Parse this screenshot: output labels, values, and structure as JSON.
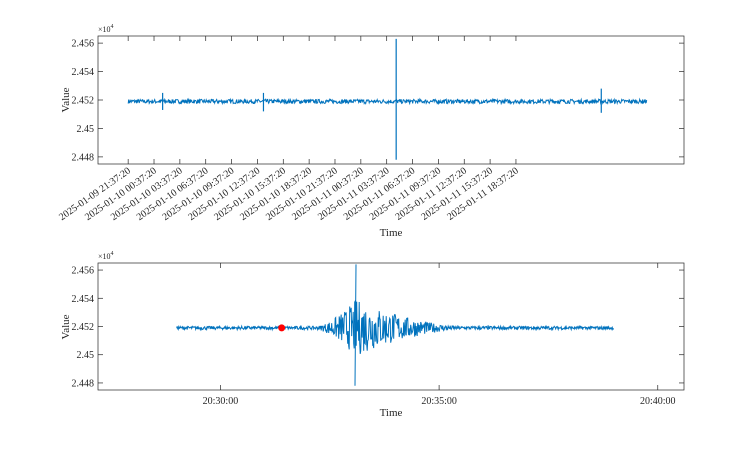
{
  "chart_data": [
    {
      "type": "line",
      "xlabel": "Time",
      "ylabel": "Value",
      "y_exponent_label": "×10",
      "y_exponent_power": "4",
      "yticks": [
        24480,
        24500,
        24520,
        24540,
        24560
      ],
      "ytick_labels": [
        "2.448",
        "2.45",
        "2.452",
        "2.454",
        "2.456"
      ],
      "ylim": [
        24475,
        24565
      ],
      "x_unit": "hours since 2025-01-09 21:37:20",
      "xlim": [
        -3.5,
        64.5
      ],
      "xticks": [
        0,
        3,
        6,
        9,
        12,
        15,
        18,
        21,
        24,
        27,
        30,
        33,
        36,
        39,
        42,
        45
      ],
      "xtick_labels": [
        "2025-01-09 21:37:20",
        "2025-01-10 00:37:20",
        "2025-01-10 03:37:20",
        "2025-01-10 06:37:20",
        "2025-01-10 09:37:20",
        "2025-01-10 12:37:20",
        "2025-01-10 15:37:20",
        "2025-01-10 18:37:20",
        "2025-01-10 21:37:20",
        "2025-01-11 00:37:20",
        "2025-01-11 03:37:20",
        "2025-01-11 06:37:20",
        "2025-01-11 09:37:20",
        "2025-01-11 12:37:20",
        "2025-01-11 15:37:20",
        "2025-01-11 18:37:20"
      ],
      "grid": false,
      "series_color": "#0072BD",
      "series": [
        {
          "x_start": 0,
          "x_end": 60.2,
          "baseline": 24519,
          "noise_amplitude": 1.5,
          "spikes": [
            {
              "x": 31.1,
              "min": 24478,
              "max": 24563
            },
            {
              "x": 15.7,
              "min": 24512,
              "max": 24525
            },
            {
              "x": 54.9,
              "min": 24511,
              "max": 24528
            },
            {
              "x": 4.0,
              "min": 24513,
              "max": 24525
            }
          ]
        }
      ]
    },
    {
      "type": "line",
      "xlabel": "Time",
      "ylabel": "Value",
      "y_exponent_label": "×10",
      "y_exponent_power": "4",
      "yticks": [
        24480,
        24500,
        24520,
        24540,
        24560
      ],
      "ytick_labels": [
        "2.448",
        "2.45",
        "2.452",
        "2.454",
        "2.456"
      ],
      "ylim": [
        24475,
        24565
      ],
      "x_unit": "minutes after 20:00:00",
      "xlim": [
        27.2,
        40.6
      ],
      "xticks": [
        30,
        35,
        40
      ],
      "xtick_labels": [
        "20:30:00",
        "20:35:00",
        "20:40:00"
      ],
      "grid": false,
      "series_color": "#0072BD",
      "marker": {
        "x": 31.4,
        "y": 24519,
        "color": "#ff0000"
      },
      "series": [
        {
          "x_start": 29.0,
          "x_end": 39.0,
          "baseline": 24519,
          "noise_amplitude": 1.2,
          "event_start": 32.2,
          "event_peak": 33.1,
          "event_end": 35.5,
          "event_max": 24564,
          "event_min": 24478
        }
      ]
    }
  ]
}
